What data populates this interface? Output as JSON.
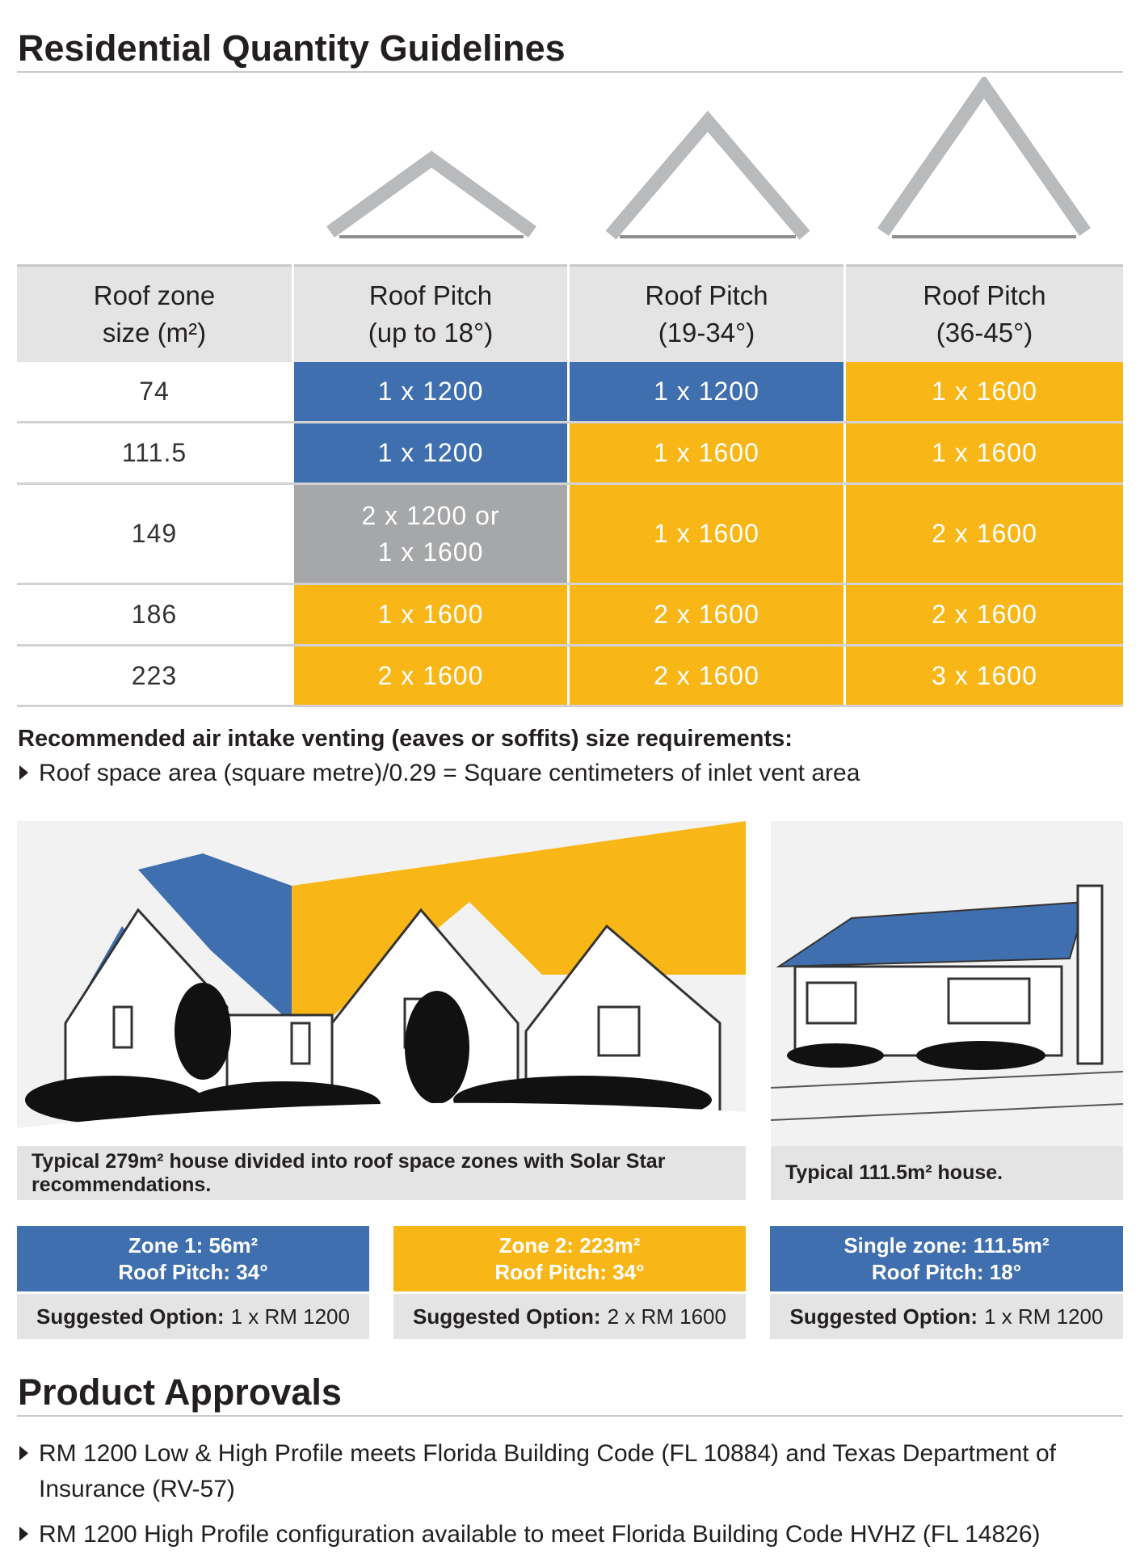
{
  "header": {
    "title": "Residential Quantity Guidelines"
  },
  "table": {
    "columns": [
      "Roof zone\nsize (m²)",
      "Roof Pitch\n(up to 18°)",
      "Roof Pitch\n(19-34°)",
      "Roof Pitch\n(36-45°)"
    ],
    "rows": [
      [
        "74",
        {
          "text": "1 x 1200",
          "color": "#3f6fae"
        },
        {
          "text": "1 x 1200",
          "color": "#3f6fae"
        },
        {
          "text": "1 x 1600",
          "color": "#f8b617"
        }
      ],
      [
        "111.5",
        {
          "text": "1 x 1200",
          "color": "#3f6fae"
        },
        {
          "text": "1 x 1600",
          "color": "#f8b617"
        },
        {
          "text": "1 x 1600",
          "color": "#f8b617"
        }
      ],
      [
        "149",
        {
          "text": "2 x 1200 or\n1 x 1600",
          "color": "#a6a7a9"
        },
        {
          "text": "1 x 1600",
          "color": "#f8b617"
        },
        {
          "text": "2 x 1600",
          "color": "#f8b617"
        }
      ],
      [
        "186",
        {
          "text": "1 x 1600",
          "color": "#f8b617"
        },
        {
          "text": "2 x 1600",
          "color": "#f8b617"
        },
        {
          "text": "2 x 1600",
          "color": "#f8b617"
        }
      ],
      [
        "223",
        {
          "text": "2 x 1600",
          "color": "#f8b617"
        },
        {
          "text": "2 x 1600",
          "color": "#f8b617"
        },
        {
          "text": "3 x 1600",
          "color": "#f8b617"
        }
      ]
    ]
  },
  "venting": {
    "heading": "Recommended air intake venting (eaves or soffits) size requirements:",
    "bullet": "Roof space area (square metre)/0.29 = Square centimeters of inlet vent area"
  },
  "images": [
    {
      "caption": "Typical 279m² house divided into roof space zones with Solar Star recommendations."
    },
    {
      "caption": "Typical 111.5m² house."
    }
  ],
  "zones": [
    {
      "title": "Zone 1: 56m²",
      "pitch": "Roof Pitch: 34°",
      "label": "Suggested Option:",
      "option": "1 x RM 1200",
      "color": "#3f6fae"
    },
    {
      "title": "Zone 2: 223m²",
      "pitch": "Roof Pitch: 34°",
      "label": "Suggested Option:",
      "option": "2 x RM 1600",
      "color": "#f8b617"
    },
    {
      "title": "Single zone: 111.5m²",
      "pitch": "Roof Pitch: 18°",
      "label": "Suggested Option:",
      "option": "1 x RM 1200",
      "color": "#3f6fae"
    }
  ],
  "approvals": {
    "title": "Product Approvals",
    "bullets": [
      "RM 1200 Low & High Profile meets Florida Building Code (FL 10884) and Texas Department of Insurance (RV-57)",
      "RM 1200 High Profile configuration available to meet Florida Building Code HVHZ (FL 14826)"
    ]
  }
}
